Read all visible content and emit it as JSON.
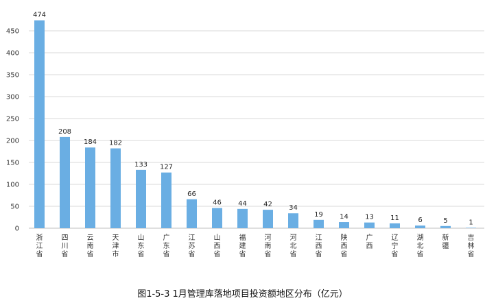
{
  "chart_data": {
    "type": "bar",
    "title": "",
    "xlabel": "",
    "ylabel": "",
    "ylim": [
      0,
      500
    ],
    "yticks": [
      0,
      50,
      100,
      150,
      200,
      250,
      300,
      350,
      400,
      450
    ],
    "grid": true,
    "categories": [
      "浙江省",
      "四川省",
      "云南省",
      "天津市",
      "山东省",
      "广东省",
      "江苏省",
      "山西省",
      "福建省",
      "河南省",
      "河北省",
      "江西省",
      "陕西省",
      "广西",
      "辽宁省",
      "湖北省",
      "新疆",
      "吉林省"
    ],
    "values": [
      474,
      208,
      184,
      182,
      133,
      127,
      66,
      46,
      44,
      42,
      34,
      19,
      14,
      13,
      11,
      6,
      5,
      1
    ],
    "bar_color": "#6aaee3"
  },
  "caption": "图1-5-3  1月管理库落地项目投资额地区分布（亿元）"
}
